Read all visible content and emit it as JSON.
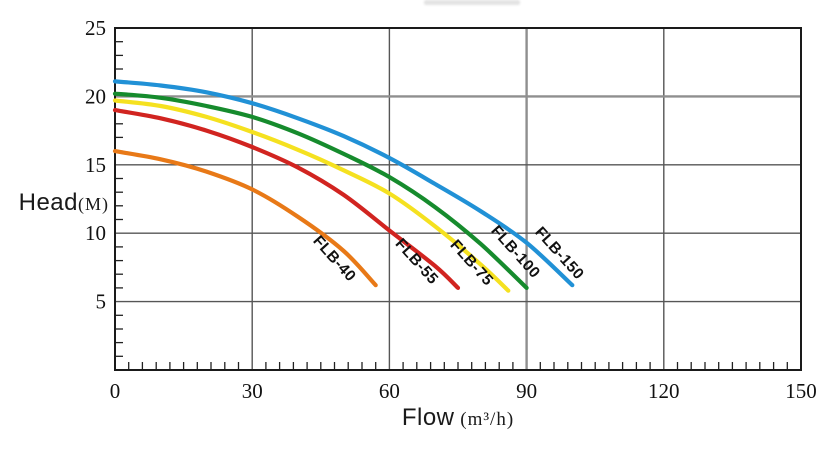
{
  "page": {
    "background": "#ffffff",
    "text_color": "#1a1a1a"
  },
  "chart_data": {
    "type": "line",
    "xlabel_main": "Flow",
    "xlabel_unit": "(m³/h)",
    "ylabel_main": "Head",
    "ylabel_unit": "(M)",
    "xlim": [
      0,
      150
    ],
    "ylim": [
      0,
      25
    ],
    "x_ticks": [
      0,
      30,
      60,
      90,
      120,
      150
    ],
    "y_ticks": [
      5,
      10,
      15,
      20,
      25
    ],
    "x_minor_step": 3,
    "y_minor_step": 1,
    "grid": true,
    "legend_position": "inline-curve-labels",
    "grid_color": "#565656",
    "grid_emphasis_color": "#8f8f8f",
    "border_color": "#1a1a1a",
    "emphasized_x_gridline": 90,
    "emphasized_y_gridline": 20,
    "series": [
      {
        "name": "FLB-40",
        "color": "#E87917",
        "points": [
          [
            0,
            16.0
          ],
          [
            10,
            15.4
          ],
          [
            20,
            14.5
          ],
          [
            30,
            13.2
          ],
          [
            40,
            11.2
          ],
          [
            50,
            8.7
          ],
          [
            57,
            6.2
          ]
        ],
        "label_pos": [
          47.2,
          7.9
        ]
      },
      {
        "name": "FLB-55",
        "color": "#D12420",
        "points": [
          [
            0,
            19.0
          ],
          [
            10,
            18.4
          ],
          [
            20,
            17.5
          ],
          [
            30,
            16.3
          ],
          [
            40,
            14.8
          ],
          [
            50,
            12.8
          ],
          [
            60,
            10.2
          ],
          [
            70,
            7.6
          ],
          [
            75,
            6.0
          ]
        ],
        "label_pos": [
          65.2,
          7.7
        ]
      },
      {
        "name": "FLB-75",
        "color": "#F5E120",
        "points": [
          [
            0,
            19.7
          ],
          [
            10,
            19.3
          ],
          [
            20,
            18.5
          ],
          [
            30,
            17.4
          ],
          [
            40,
            16.1
          ],
          [
            50,
            14.6
          ],
          [
            60,
            12.9
          ],
          [
            70,
            10.5
          ],
          [
            80,
            7.7
          ],
          [
            86,
            5.8
          ]
        ],
        "label_pos": [
          77.2,
          7.6
        ]
      },
      {
        "name": "FLB-100",
        "color": "#168B2D",
        "points": [
          [
            0,
            20.2
          ],
          [
            10,
            19.9
          ],
          [
            20,
            19.3
          ],
          [
            30,
            18.5
          ],
          [
            40,
            17.3
          ],
          [
            50,
            15.8
          ],
          [
            60,
            14.1
          ],
          [
            70,
            11.9
          ],
          [
            80,
            9.2
          ],
          [
            90,
            6.0
          ]
        ],
        "label_pos": [
          86.8,
          8.4
        ]
      },
      {
        "name": "FLB-150",
        "color": "#2191D6",
        "points": [
          [
            0,
            21.1
          ],
          [
            10,
            20.8
          ],
          [
            20,
            20.3
          ],
          [
            30,
            19.5
          ],
          [
            40,
            18.4
          ],
          [
            50,
            17.1
          ],
          [
            60,
            15.5
          ],
          [
            70,
            13.6
          ],
          [
            80,
            11.6
          ],
          [
            90,
            9.3
          ],
          [
            100,
            6.2
          ]
        ],
        "label_pos": [
          96.4,
          8.3
        ]
      }
    ]
  }
}
